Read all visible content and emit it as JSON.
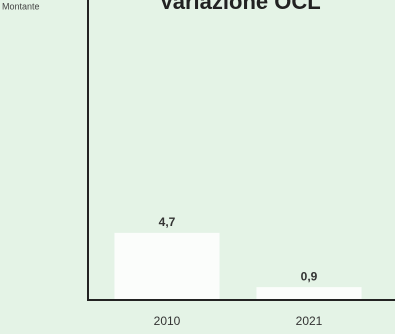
{
  "chart_data": {
    "type": "bar",
    "title": "Variazione OCL",
    "y_label": "Montante",
    "categories": [
      "2010",
      "2021"
    ],
    "values": [
      4.7,
      0.9
    ],
    "value_labels": [
      "4,7",
      "0,9"
    ],
    "color": "#fbfdfb",
    "ylim": [
      0,
      21
    ]
  }
}
